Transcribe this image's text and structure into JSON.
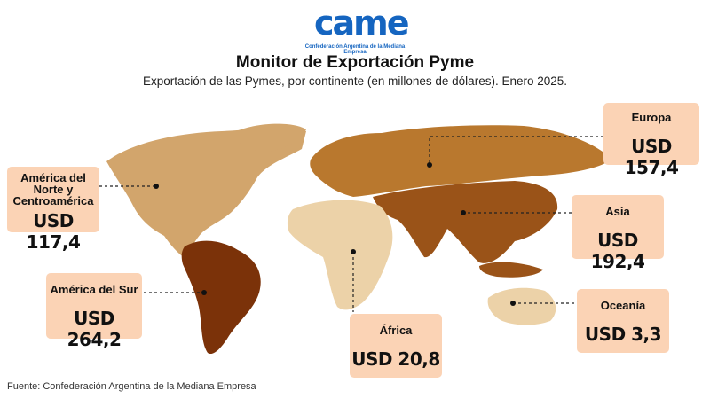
{
  "logo": {
    "word": "came",
    "subtitle": "Confederación Argentina de la Mediana Empresa"
  },
  "title": "Monitor de Exportación Pyme",
  "subtitle": "Exportación de las Pymes, por continente (en millones de dólares). Enero 2025.",
  "source": "Fuente: Confederación Argentina de la Mediana Empresa",
  "colors": {
    "highest": "#7b3209",
    "high": "#9a5318",
    "mid": "#b9782e",
    "low": "#d2a56c",
    "lowest": "#ecd2a8",
    "label_bg": "#fbd3b5"
  },
  "chart_data": {
    "type": "map",
    "unit": "millones de dólares",
    "regions": [
      {
        "name": "Europa",
        "label": "USD 157,4",
        "value": 157.4
      },
      {
        "name": "América del Norte y Centroamérica",
        "label": "USD 117,4",
        "value": 117.4
      },
      {
        "name": "Asia",
        "label": "USD 192,4",
        "value": 192.4
      },
      {
        "name": "América del Sur",
        "label": "USD 264,2",
        "value": 264.2
      },
      {
        "name": "África",
        "label": "USD 20,8",
        "value": 20.8
      },
      {
        "name": "Oceanía",
        "label": "USD 3,3",
        "value": 3.3
      }
    ]
  }
}
